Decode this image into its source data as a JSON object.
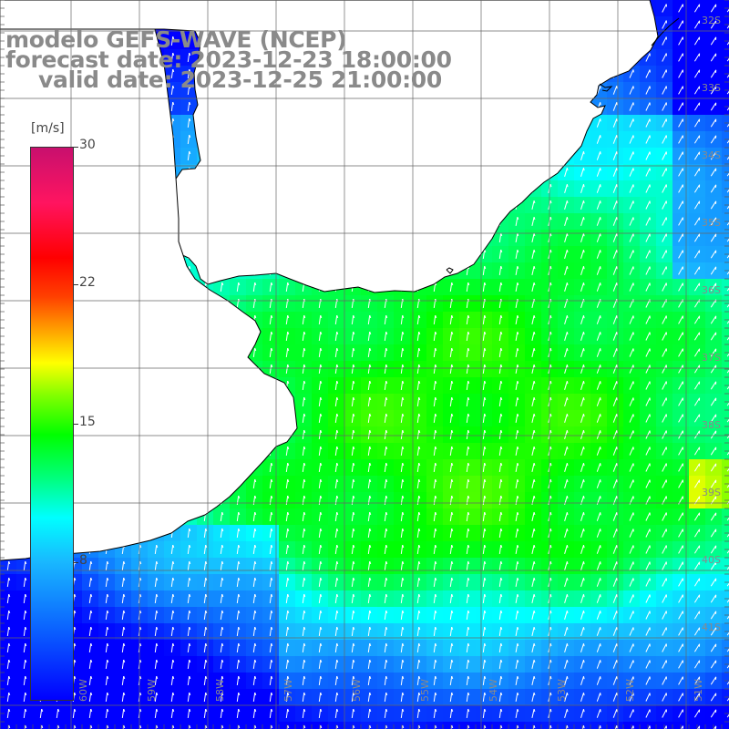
{
  "title": {
    "line1": "modelo GEFS-WAVE (NCEP)",
    "line2": "forecast date: 2023-12-23 18:00:00",
    "line3": "valid date: 2023-12-25 21:00:00"
  },
  "colorbar": {
    "unit": "[m/s]",
    "ticks": [
      "30",
      "22",
      "15",
      "8"
    ],
    "stops": [
      "#0000ff",
      "#0a5cff",
      "#19b8ff",
      "#00ffff",
      "#00ff7f",
      "#00ff00",
      "#7fff00",
      "#ffff00",
      "#ffa000",
      "#ff4000",
      "#ff0000",
      "#ff1460",
      "#c8106e"
    ]
  },
  "lat_labels": [
    "32S",
    "33S",
    "34S",
    "35S",
    "36S",
    "37S",
    "38S",
    "39S",
    "40S",
    "41S"
  ],
  "lon_labels": [
    "60W",
    "59W",
    "58W",
    "57W",
    "56W",
    "55W",
    "54W",
    "53W",
    "52W",
    "51W"
  ],
  "colors": {
    "land": "#ffffff",
    "coast": "#000000",
    "grid": "#666666",
    "arrow": "#ffffff",
    "title": "#8a8a8a"
  }
}
